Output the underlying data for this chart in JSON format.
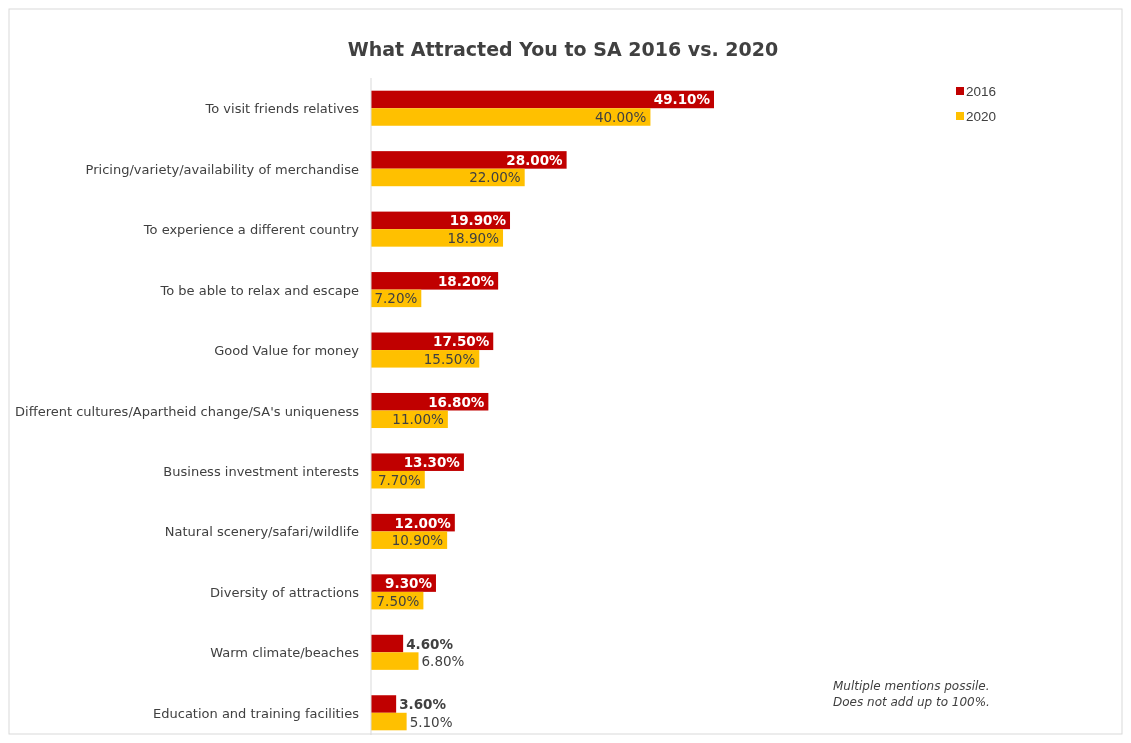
{
  "chart_data": {
    "type": "bar",
    "orientation": "horizontal",
    "title": "What Attracted You to SA 2016 vs. 2020",
    "categories": [
      "To visit friends relatives",
      "Pricing/variety/availability of merchandise",
      "To experience a different country",
      "To be able to relax and escape",
      "Good Value for money",
      "Different cultures/Apartheid change/SA's uniqueness",
      "Business investment interests",
      "Natural scenery/safari/wildlife",
      "Diversity of attractions",
      "Warm climate/beaches",
      "Education and training facilities"
    ],
    "series": [
      {
        "name": "2016",
        "color": "#c00000",
        "values": [
          49.1,
          28,
          19.9,
          18.2,
          17.5,
          16.8,
          13.3,
          12,
          9.3,
          4.6,
          3.6
        ],
        "value_labels": [
          "49.10%",
          "28.00%",
          "19.90%",
          "18.20%",
          "17.50%",
          "16.80%",
          "13.30%",
          "12.00%",
          "9.30%",
          "4.60%",
          "3.60%"
        ]
      },
      {
        "name": "2020",
        "color": "#ffc000",
        "values": [
          40,
          22,
          18.9,
          7.2,
          15.5,
          11,
          7.7,
          10.9,
          7.5,
          6.8,
          5.1
        ],
        "value_labels": [
          "40.00%",
          "22.00%",
          "18.90%",
          "7.20%",
          "15.50%",
          "11.00%",
          "7.70%",
          "10.90%",
          "7.50%",
          "6.80%",
          "5.10%"
        ]
      }
    ],
    "legend": "top right",
    "annotations": [
      "Multiple mentions possile.",
      "Does not add up to 100%."
    ]
  }
}
